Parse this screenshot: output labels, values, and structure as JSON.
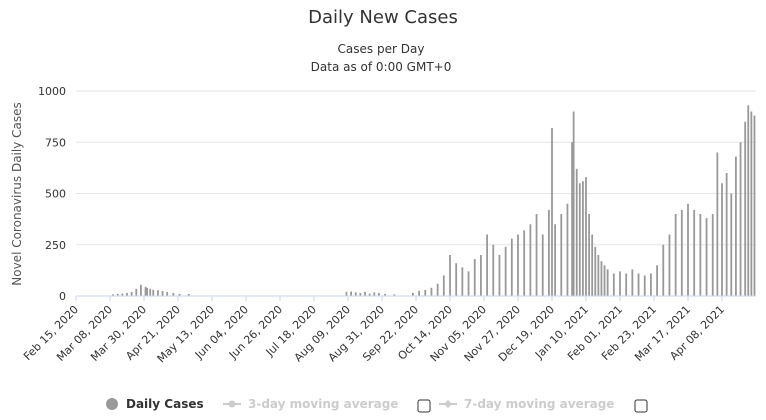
{
  "chart_data": {
    "type": "bar",
    "title": "Daily New Cases",
    "subtitle_line1": "Cases per Day",
    "subtitle_line2": "Data as of 0:00 GMT+0",
    "ylabel": "Novel Coronavirus Daily Cases",
    "ylim": [
      0,
      1000
    ],
    "yticks": [
      0,
      250,
      500,
      750,
      1000
    ],
    "ytick_labels": [
      "0",
      "250",
      "500",
      "750",
      "1000"
    ],
    "x_start": "2020-02-15",
    "x_end": "2021-04-30",
    "xtick_labels": [
      "Feb 15, 2020",
      "Mar 08, 2020",
      "Mar 30, 2020",
      "Apr 21, 2020",
      "May 13, 2020",
      "Jun 04, 2020",
      "Jun 26, 2020",
      "Jul 18, 2020",
      "Aug 09, 2020",
      "Aug 31, 2020",
      "Sep 22, 2020",
      "Oct 14, 2020",
      "Nov 05, 2020",
      "Nov 27, 2020",
      "Dec 19, 2020",
      "Jan 10, 2021",
      "Feb 01, 2021",
      "Feb 23, 2021",
      "Mar 17, 2021",
      "Apr 08, 2021"
    ],
    "grid": true,
    "series": [
      {
        "name": "Daily Cases",
        "color": "#999999",
        "dates": [
          "2020-03-10",
          "2020-03-13",
          "2020-03-16",
          "2020-03-19",
          "2020-03-22",
          "2020-03-25",
          "2020-03-28",
          "2020-03-31",
          "2020-04-01",
          "2020-04-03",
          "2020-04-05",
          "2020-04-08",
          "2020-04-11",
          "2020-04-14",
          "2020-04-18",
          "2020-04-22",
          "2020-04-28",
          "2020-08-08",
          "2020-08-11",
          "2020-08-14",
          "2020-08-17",
          "2020-08-20",
          "2020-08-23",
          "2020-08-26",
          "2020-08-29",
          "2020-09-02",
          "2020-09-08",
          "2020-09-20",
          "2020-09-24",
          "2020-09-28",
          "2020-10-02",
          "2020-10-06",
          "2020-10-10",
          "2020-10-14",
          "2020-10-18",
          "2020-10-22",
          "2020-10-26",
          "2020-10-30",
          "2020-11-03",
          "2020-11-07",
          "2020-11-11",
          "2020-11-15",
          "2020-11-19",
          "2020-11-23",
          "2020-11-27",
          "2020-12-01",
          "2020-12-05",
          "2020-12-09",
          "2020-12-13",
          "2020-12-17",
          "2020-12-19",
          "2020-12-21",
          "2020-12-25",
          "2020-12-29",
          "2021-01-01",
          "2021-01-02",
          "2021-01-04",
          "2021-01-06",
          "2021-01-08",
          "2021-01-10",
          "2021-01-12",
          "2021-01-14",
          "2021-01-16",
          "2021-01-18",
          "2021-01-20",
          "2021-01-22",
          "2021-01-24",
          "2021-01-28",
          "2021-02-01",
          "2021-02-05",
          "2021-02-09",
          "2021-02-13",
          "2021-02-17",
          "2021-02-21",
          "2021-02-25",
          "2021-03-01",
          "2021-03-05",
          "2021-03-09",
          "2021-03-13",
          "2021-03-17",
          "2021-03-21",
          "2021-03-25",
          "2021-03-29",
          "2021-04-02",
          "2021-04-05",
          "2021-04-08",
          "2021-04-11",
          "2021-04-14",
          "2021-04-17",
          "2021-04-20",
          "2021-04-23",
          "2021-04-25",
          "2021-04-27",
          "2021-04-29"
        ],
        "values": [
          8,
          10,
          12,
          15,
          20,
          35,
          55,
          45,
          40,
          35,
          30,
          28,
          25,
          20,
          15,
          10,
          10,
          20,
          22,
          18,
          15,
          20,
          12,
          18,
          15,
          10,
          8,
          15,
          25,
          30,
          40,
          60,
          100,
          200,
          160,
          140,
          120,
          180,
          200,
          300,
          250,
          200,
          240,
          280,
          300,
          320,
          350,
          400,
          300,
          420,
          820,
          350,
          400,
          450,
          750,
          900,
          620,
          550,
          560,
          580,
          400,
          300,
          240,
          200,
          170,
          150,
          130,
          110,
          120,
          110,
          130,
          110,
          100,
          110,
          150,
          250,
          300,
          400,
          420,
          450,
          420,
          400,
          380,
          400,
          700,
          550,
          600,
          500,
          680,
          750,
          850,
          930,
          900,
          880
        ]
      }
    ],
    "legend": {
      "placement": "bottom",
      "items": [
        {
          "label": "Daily Cases",
          "color": "#999999",
          "active": true
        },
        {
          "label": "3-day moving average",
          "color": "#cccccc",
          "active": false
        },
        {
          "label": "7-day moving average",
          "color": "#cccccc",
          "active": false
        }
      ]
    }
  }
}
